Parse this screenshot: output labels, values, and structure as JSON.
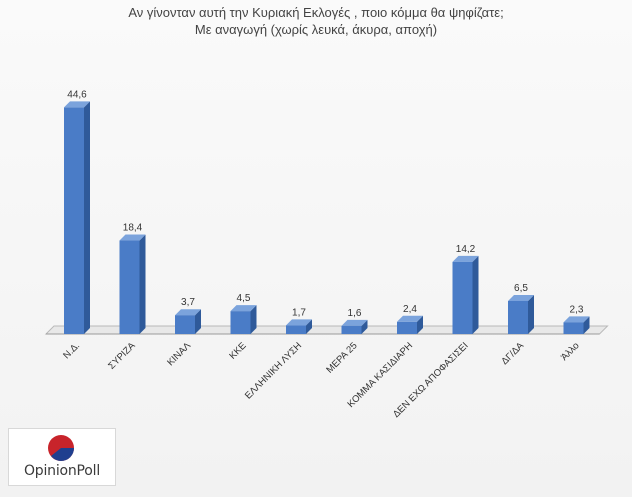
{
  "chart_data": {
    "type": "bar",
    "title": "Αν γίνονταν αυτή την Κυριακή Εκλογές , ποιο κόμμα θα ψηφίζατε;",
    "subtitle": "Με αναγωγή (χωρίς λευκά, άκυρα, αποχή)",
    "categories": [
      "Ν.Δ.",
      "ΣΥΡΙΖΑ",
      "ΚΙΝΑΛ",
      "ΚΚΕ",
      "ΕΛΛΗΝΙΚΗ ΛΥΣΗ",
      "ΜΕΡΑ 25",
      "ΚΟΜΜΑ ΚΑΣΙΔΙΑΡΗ",
      "ΔΕΝ ΕΧΩ ΑΠΟΦΑΣΙΣΕΙ",
      "ΔΓ/ΔΑ",
      "Άλλο"
    ],
    "values": [
      44.6,
      18.4,
      3.7,
      4.5,
      1.7,
      1.6,
      2.4,
      14.2,
      6.5,
      2.3
    ],
    "value_labels": [
      "44,6",
      "18,4",
      "3,7",
      "4,5",
      "1,7",
      "1,6",
      "2,4",
      "14,2",
      "6,5",
      "2,3"
    ],
    "ylim": [
      0,
      50
    ],
    "xlabel": "",
    "ylabel": "",
    "grid": false,
    "legend": "none",
    "bar_color": "#4a7cc7",
    "bar_side_color": "#2f5a9a",
    "bar_top_color": "#7ba3dc"
  },
  "logo": {
    "text": "OpinionPoll",
    "colors": [
      "#c8242b",
      "#1f3f8f"
    ]
  }
}
